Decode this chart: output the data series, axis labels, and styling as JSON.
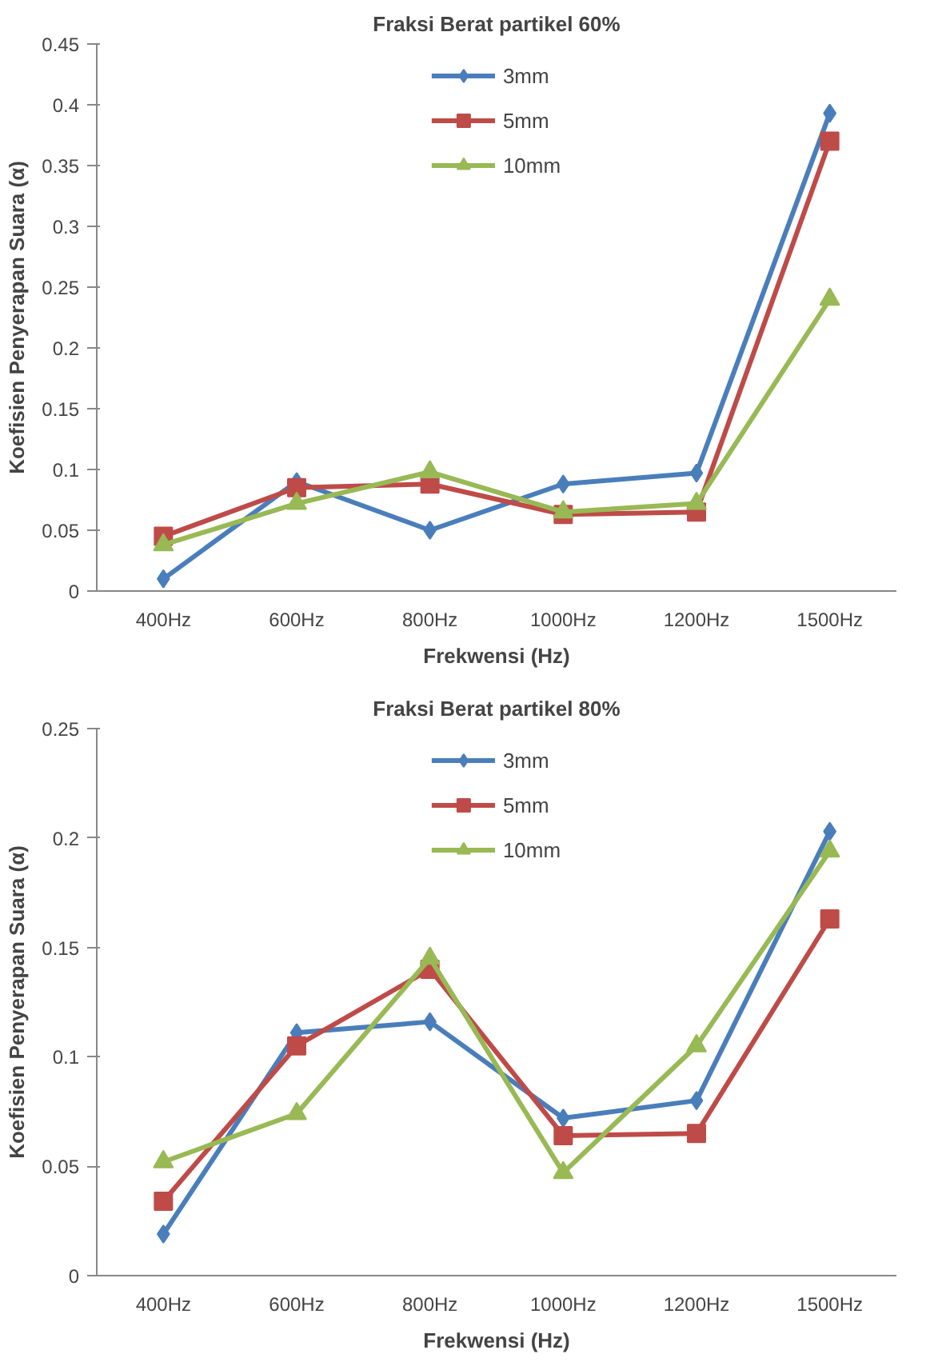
{
  "chart_data": [
    {
      "type": "line",
      "title": "Fraksi Berat partikel 60%",
      "xlabel": "Frekwensi (Hz)",
      "ylabel": "Koefisien Penyerapan Suara (α)",
      "categories": [
        "400Hz",
        "600Hz",
        "800Hz",
        "1000Hz",
        "1200Hz",
        "1500Hz"
      ],
      "ylim": [
        0,
        0.45
      ],
      "yticks": [
        0,
        0.05,
        0.1,
        0.15,
        0.2,
        0.25,
        0.3,
        0.35,
        0.4,
        0.45
      ],
      "grid": false,
      "legend": "top",
      "series": [
        {
          "name": "3mm",
          "color": "#4a7ebb",
          "marker": "diamond",
          "values": [
            0.01,
            0.09,
            0.05,
            0.088,
            0.097,
            0.393
          ]
        },
        {
          "name": "5mm",
          "color": "#be4b48",
          "marker": "square",
          "values": [
            0.045,
            0.085,
            0.088,
            0.063,
            0.065,
            0.37
          ]
        },
        {
          "name": "10mm",
          "color": "#98b954",
          "marker": "triangle",
          "values": [
            0.038,
            0.072,
            0.098,
            0.065,
            0.072,
            0.24
          ]
        }
      ]
    },
    {
      "type": "line",
      "title": "Fraksi Berat partikel 80%",
      "xlabel": "Frekwensi (Hz)",
      "ylabel": "Koefisien Penyerapan Suara (α)",
      "categories": [
        "400Hz",
        "600Hz",
        "800Hz",
        "1000Hz",
        "1200Hz",
        "1500Hz"
      ],
      "ylim": [
        0,
        0.25
      ],
      "yticks": [
        0,
        0.05,
        0.1,
        0.15,
        0.2,
        0.25
      ],
      "grid": false,
      "legend": "top",
      "series": [
        {
          "name": "3mm",
          "color": "#4a7ebb",
          "marker": "diamond",
          "values": [
            0.019,
            0.111,
            0.116,
            0.072,
            0.08,
            0.203
          ]
        },
        {
          "name": "5mm",
          "color": "#be4b48",
          "marker": "square",
          "values": [
            0.034,
            0.105,
            0.14,
            0.064,
            0.065,
            0.163
          ]
        },
        {
          "name": "10mm",
          "color": "#98b954",
          "marker": "triangle",
          "values": [
            0.052,
            0.074,
            0.145,
            0.047,
            0.105,
            0.194
          ]
        }
      ]
    }
  ]
}
